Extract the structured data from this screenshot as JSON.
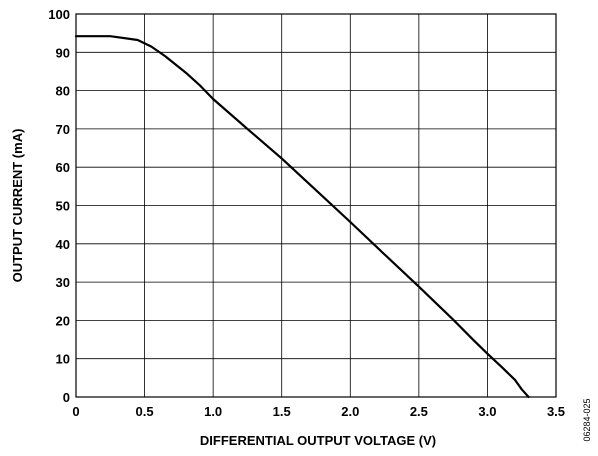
{
  "chart_data": {
    "type": "line",
    "xlabel": "DIFFERENTIAL OUTPUT VOLTAGE (V)",
    "ylabel": "OUTPUT CURRENT (mA)",
    "xlim": [
      0,
      3.5
    ],
    "ylim": [
      0,
      100
    ],
    "x_ticks": [
      "0",
      "0.5",
      "1.0",
      "1.5",
      "2.0",
      "2.5",
      "3.0",
      "3.5"
    ],
    "x_tick_values": [
      0,
      0.5,
      1.0,
      1.5,
      2.0,
      2.5,
      3.0,
      3.5
    ],
    "y_ticks": [
      "0",
      "10",
      "20",
      "30",
      "40",
      "50",
      "60",
      "70",
      "80",
      "90",
      "100"
    ],
    "y_tick_values": [
      0,
      10,
      20,
      30,
      40,
      50,
      60,
      70,
      80,
      90,
      100
    ],
    "grid": true,
    "series": [
      {
        "color": "#000000",
        "x": [
          0,
          0.25,
          0.45,
          0.55,
          0.65,
          0.8,
          0.9,
          1.0,
          1.25,
          1.5,
          1.75,
          2.0,
          2.25,
          2.5,
          2.75,
          2.9,
          3.0,
          3.1,
          3.2,
          3.25,
          3.3
        ],
        "y": [
          94.2,
          94.2,
          93.2,
          91.5,
          89.0,
          84.7,
          81.5,
          77.8,
          70.0,
          62.3,
          54.0,
          45.7,
          37.2,
          28.8,
          20.2,
          14.8,
          11.3,
          8.0,
          4.5,
          2.0,
          0
        ]
      }
    ]
  },
  "figure_id": "06284-025"
}
